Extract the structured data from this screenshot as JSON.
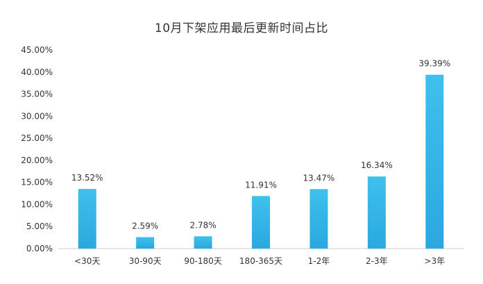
{
  "chart_data": {
    "type": "bar",
    "title": "10月下架应用最后更新时间占比",
    "xlabel": "",
    "ylabel": "",
    "categories": [
      "<30天",
      "30-90天",
      "90-180天",
      "180-365天",
      "1-2年",
      "2-3年",
      ">3年"
    ],
    "values": [
      13.52,
      2.59,
      2.78,
      11.91,
      13.47,
      16.34,
      39.39
    ],
    "value_labels": [
      "13.52%",
      "2.59%",
      "2.78%",
      "11.91%",
      "13.47%",
      "16.34%",
      "39.39%"
    ],
    "ylim": [
      0,
      45
    ],
    "yticks": [
      0,
      5,
      10,
      15,
      20,
      25,
      30,
      35,
      40,
      45
    ],
    "ytick_labels": [
      "0.00%",
      "5.00%",
      "10.00%",
      "15.00%",
      "20.00%",
      "25.00%",
      "30.00%",
      "35.00%",
      "40.00%",
      "45.00%"
    ],
    "grid": false,
    "legend": "none",
    "colors": {
      "bar_top": "#3fc0ec",
      "bar_bottom": "#2aa8e0",
      "text": "#333333",
      "axis": "#cccccc"
    }
  }
}
